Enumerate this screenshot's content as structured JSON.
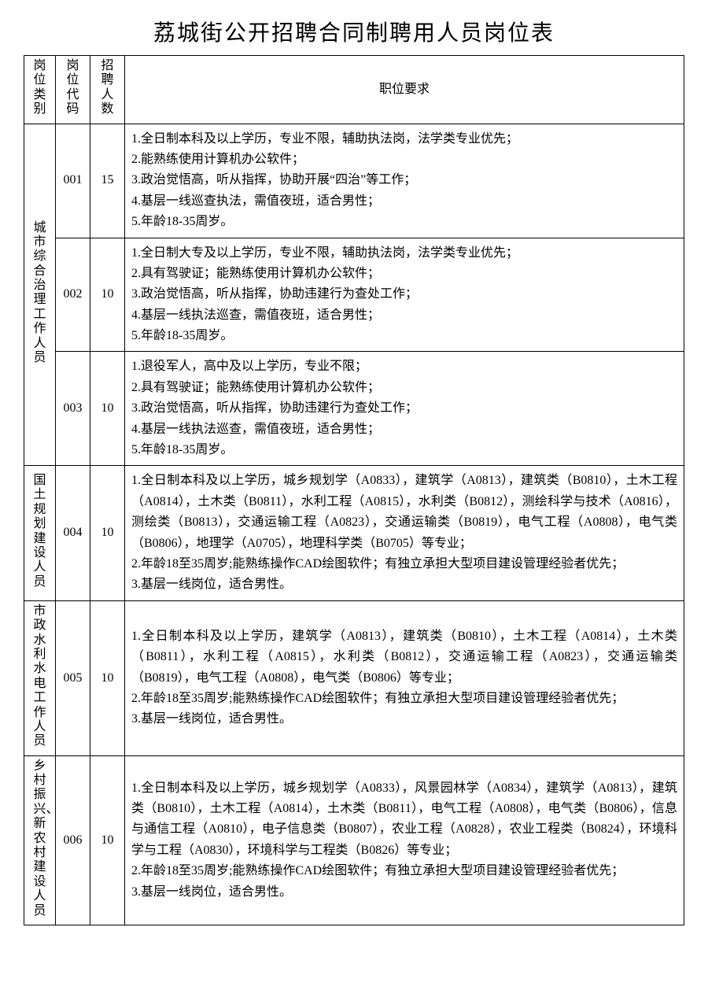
{
  "title": "荔城街公开招聘合同制聘用人员岗位表",
  "headers": {
    "category": "岗位类别",
    "code": "岗位代码",
    "count": "招聘人数",
    "req": "职位要求"
  },
  "groups": [
    {
      "category": "城市综合治理工作人员",
      "rows": [
        {
          "code": "001",
          "count": "15",
          "req": [
            "1.全日制本科及以上学历，专业不限，辅助执法岗，法学类专业优先；",
            "2.能熟练使用计算机办公软件；",
            "3.政治觉悟高，听从指挥，协助开展“四治”等工作；",
            "4.基层一线巡查执法，需值夜班，适合男性；",
            "5.年龄18-35周岁。"
          ]
        },
        {
          "code": "002",
          "count": "10",
          "req": [
            "1.全日制大专及以上学历，专业不限，辅助执法岗，法学类专业优先；",
            "2.具有驾驶证；能熟练使用计算机办公软件；",
            "3.政治觉悟高，听从指挥，协助违建行为查处工作；",
            "4.基层一线执法巡查，需值夜班，适合男性；",
            "5.年龄18-35周岁。"
          ]
        },
        {
          "code": "003",
          "count": "10",
          "req": [
            "1.退役军人，高中及以上学历，专业不限；",
            "2.具有驾驶证；能熟练使用计算机办公软件；",
            "3.政治觉悟高，听从指挥，协助违建行为查处工作；",
            "4.基层一线执法巡查，需值夜班，适合男性；",
            "5.年龄18-35周岁。"
          ]
        }
      ]
    },
    {
      "category": "国土规划建设人员",
      "rows": [
        {
          "code": "004",
          "count": "10",
          "req": [
            "1.全日制本科及以上学历，城乡规划学（A0833），建筑学（A0813），建筑类（B0810），土木工程（A0814），土木类（B0811），水利工程（A0815），水利类（B0812），测绘科学与技术（A0816），测绘类（B0813），交通运输工程（A0823），交通运输类（B0819），电气工程（A0808），电气类（B0806），地理学（A0705），地理科学类（B0705）等专业；",
            "2.年龄18至35周岁;能熟练操作CAD绘图软件；有独立承担大型项目建设管理经验者优先；",
            "3.基层一线岗位，适合男性。"
          ]
        }
      ]
    },
    {
      "category": "市政水利水电工作人员",
      "rows": [
        {
          "code": "005",
          "count": "10",
          "req": [
            "1.全日制本科及以上学历，建筑学（A0813），建筑类（B0810），土木工程（A0814），土木类（B0811），水利工程（A0815），水利类（B0812），交通运输工程（A0823），交通运输类（B0819），电气工程（A0808），电气类（B0806）等专业；",
            "2.年龄18至35周岁;能熟练操作CAD绘图软件；有独立承担大型项目建设管理经验者优先；",
            "3.基层一线岗位，适合男性。"
          ]
        }
      ]
    },
    {
      "category": "乡村振兴、新农村建设人员",
      "rows": [
        {
          "code": "006",
          "count": "10",
          "req": [
            "1.全日制本科及以上学历，城乡规划学（A0833），风景园林学（A0834），建筑学（A0813），建筑类（B0810），土木工程（A0814），土木类（B0811），电气工程（A0808），电气类（B0806），信息与通信工程（A0810），电子信息类（B0807），农业工程（A0828），农业工程类（B0824），环境科学与工程（A0830），环境科学与工程类（B0826）等专业；",
            "2.年龄18至35周岁;能熟练操作CAD绘图软件；有独立承担大型项目建设管理经验者优先；",
            "3.基层一线岗位，适合男性。"
          ]
        }
      ]
    }
  ]
}
